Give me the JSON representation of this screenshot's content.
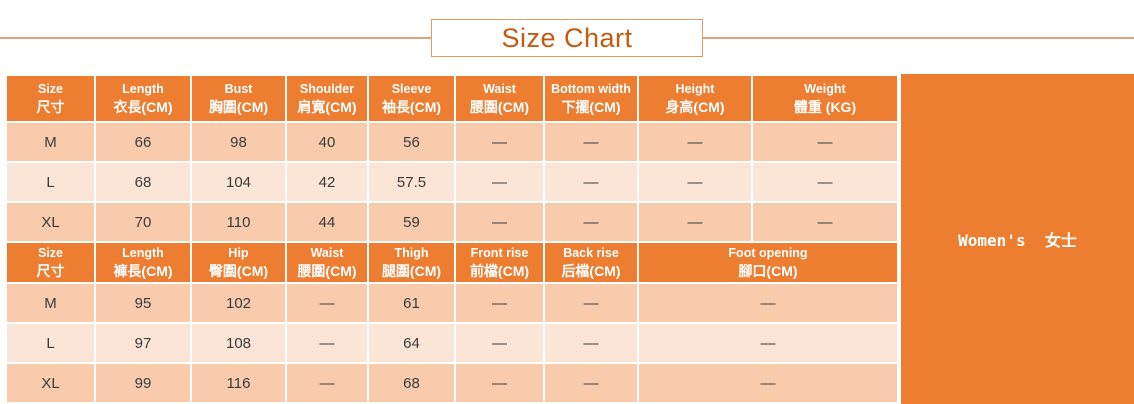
{
  "title": "Size Chart",
  "side_label": "Women's  女士",
  "colors": {
    "header_bg": "#ED7D31",
    "row_dark": "#F8CBAD",
    "row_light": "#FBE5D6",
    "title_text": "#C55A11",
    "accent_line": "#E0A47C",
    "box_border": "#DD9B66",
    "cell_text": "#3B3B3B",
    "header_text": "#FFFFFF",
    "side_panel_bg": "#ED7D31"
  },
  "chart_data": [
    {
      "type": "table",
      "name": "tops-size-table",
      "merge_last": false,
      "headers": [
        {
          "en": "Size",
          "zh": "尺寸"
        },
        {
          "en": "Length",
          "zh": "衣長(CM)"
        },
        {
          "en": "Bust",
          "zh": "胸圍(CM)"
        },
        {
          "en": "Shoulder",
          "zh": "肩寬(CM)"
        },
        {
          "en": "Sleeve",
          "zh": "袖長(CM)"
        },
        {
          "en": "Waist",
          "zh": "腰圍(CM)"
        },
        {
          "en": "Bottom width",
          "zh": "下擺(CM)"
        },
        {
          "en": "Height",
          "zh": "身高(CM)"
        },
        {
          "en": "Weight",
          "zh": "體重 (KG)"
        }
      ],
      "rows": [
        {
          "size": "M",
          "values": [
            "66",
            "98",
            "40",
            "56",
            "—",
            "—",
            "—",
            "—"
          ]
        },
        {
          "size": "L",
          "values": [
            "68",
            "104",
            "42",
            "57.5",
            "—",
            "—",
            "—",
            "—"
          ]
        },
        {
          "size": "XL",
          "values": [
            "70",
            "110",
            "44",
            "59",
            "—",
            "—",
            "—",
            "—"
          ]
        }
      ]
    },
    {
      "type": "table",
      "name": "pants-size-table",
      "merge_last": true,
      "headers": [
        {
          "en": "Size",
          "zh": "尺寸"
        },
        {
          "en": "Length",
          "zh": "褲長(CM)"
        },
        {
          "en": "Hip",
          "zh": "臀圍(CM)"
        },
        {
          "en": "Waist",
          "zh": "腰圍(CM)"
        },
        {
          "en": "Thigh",
          "zh": "腿圍(CM)"
        },
        {
          "en": "Front rise",
          "zh": "前檔(CM)"
        },
        {
          "en": "Back rise",
          "zh": "后檔(CM)"
        },
        {
          "en": "Foot opening",
          "zh": "腳口(CM)",
          "colspan": 2
        }
      ],
      "rows": [
        {
          "size": "M",
          "values": [
            "95",
            "102",
            "—",
            "61",
            "—",
            "—",
            "—"
          ]
        },
        {
          "size": "L",
          "values": [
            "97",
            "108",
            "—",
            "64",
            "—",
            "—",
            "—"
          ]
        },
        {
          "size": "XL",
          "values": [
            "99",
            "116",
            "—",
            "68",
            "—",
            "—",
            "—"
          ]
        }
      ]
    }
  ]
}
